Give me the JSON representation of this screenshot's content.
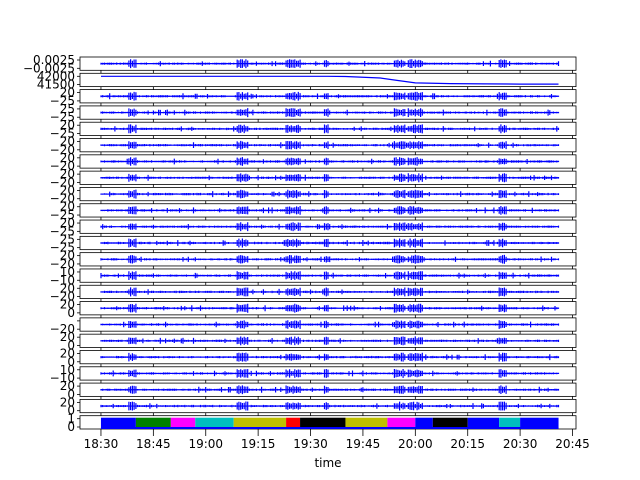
{
  "chart_data": {
    "type": "line",
    "title": "",
    "xlabel": "time",
    "x_tick_labels": [
      "18:30",
      "18:45",
      "19:00",
      "19:15",
      "19:30",
      "19:45",
      "20:00",
      "20:15",
      "20:30",
      "20:45"
    ],
    "x_range_minutes": [
      1104,
      1246
    ],
    "data_range_minutes": [
      1110,
      1241
    ],
    "panels": [
      {
        "yticks": [
          "0.0025",
          "−0.0025"
        ],
        "kind": "signal",
        "color": "#0000ff"
      },
      {
        "yticks": [
          "42000",
          "41500"
        ],
        "kind": "drift",
        "color": "#0000ff",
        "values": [
          42000,
          42000,
          42000,
          41990,
          41900,
          41750,
          41600,
          41560,
          41540,
          41530,
          41530
        ],
        "x_minutes": [
          1110,
          1165,
          1175,
          1180,
          1190,
          1195,
          1200,
          1210,
          1220,
          1230,
          1241
        ]
      },
      {
        "yticks": [
          "20",
          "−25"
        ],
        "kind": "signal",
        "color": "#0000ff"
      },
      {
        "yticks": [
          "25",
          "−25"
        ],
        "kind": "signal",
        "color": "#0000ff"
      },
      {
        "yticks": [
          "20",
          "−25"
        ],
        "kind": "signal",
        "color": "#0000ff"
      },
      {
        "yticks": [
          "20",
          "−20"
        ],
        "kind": "signal",
        "color": "#0000ff"
      },
      {
        "yticks": [
          "20",
          "−20"
        ],
        "kind": "signal",
        "color": "#0000ff"
      },
      {
        "yticks": [
          "20",
          "−20"
        ],
        "kind": "signal",
        "color": "#0000ff"
      },
      {
        "yticks": [
          "20",
          "−20"
        ],
        "kind": "signal",
        "color": "#0000ff"
      },
      {
        "yticks": [
          "20",
          "−25"
        ],
        "kind": "signal",
        "color": "#0000ff"
      },
      {
        "yticks": [
          "20",
          "−25"
        ],
        "kind": "signal",
        "color": "#0000ff"
      },
      {
        "yticks": [
          "25",
          "−25"
        ],
        "kind": "signal",
        "color": "#0000ff"
      },
      {
        "yticks": [
          "20",
          "−20"
        ],
        "kind": "signal",
        "color": "#0000ff"
      },
      {
        "yticks": [
          "10",
          "−10"
        ],
        "kind": "signal",
        "color": "#0000ff"
      },
      {
        "yticks": [
          "20",
          "−20"
        ],
        "kind": "signal",
        "color": "#0000ff"
      },
      {
        "yticks": [
          "20",
          "0"
        ],
        "kind": "signal",
        "color": "#0000ff"
      },
      {
        "yticks": [
          "",
          "−20"
        ],
        "kind": "signal",
        "color": "#0000ff"
      },
      {
        "yticks": [
          "20",
          "0"
        ],
        "kind": "signal",
        "color": "#0000ff"
      },
      {
        "yticks": [
          "20",
          "0"
        ],
        "kind": "signal",
        "color": "#0000ff"
      },
      {
        "yticks": [
          "10",
          "−10"
        ],
        "kind": "signal",
        "color": "#0000ff"
      },
      {
        "yticks": [
          "20",
          "0"
        ],
        "kind": "signal",
        "color": "#0000ff"
      },
      {
        "yticks": [
          "20",
          "0"
        ],
        "kind": "signal",
        "color": "#0000ff"
      },
      {
        "yticks": [
          "1",
          "0"
        ],
        "kind": "states",
        "color": "#0000ff"
      }
    ],
    "bursts_minutes": [
      {
        "start": 1118,
        "end": 1120
      },
      {
        "start": 1149,
        "end": 1152
      },
      {
        "start": 1163,
        "end": 1167
      },
      {
        "start": 1174,
        "end": 1175
      },
      {
        "start": 1194,
        "end": 1197
      },
      {
        "start": 1198,
        "end": 1202
      },
      {
        "start": 1224,
        "end": 1226
      }
    ],
    "state_segments": [
      {
        "start": 1110,
        "end": 1120,
        "color": "#0000ff"
      },
      {
        "start": 1120,
        "end": 1130,
        "color": "#008000"
      },
      {
        "start": 1130,
        "end": 1137,
        "color": "#ff00ff"
      },
      {
        "start": 1137,
        "end": 1148,
        "color": "#00bfbf"
      },
      {
        "start": 1148,
        "end": 1163,
        "color": "#bfbf00"
      },
      {
        "start": 1163,
        "end": 1167,
        "color": "#ff0000"
      },
      {
        "start": 1167,
        "end": 1180,
        "color": "#000000"
      },
      {
        "start": 1180,
        "end": 1192,
        "color": "#bfbf00"
      },
      {
        "start": 1192,
        "end": 1200,
        "color": "#ff00ff"
      },
      {
        "start": 1200,
        "end": 1205,
        "color": "#0000ff"
      },
      {
        "start": 1205,
        "end": 1215,
        "color": "#000000"
      },
      {
        "start": 1215,
        "end": 1224,
        "color": "#0000ff"
      },
      {
        "start": 1224,
        "end": 1230,
        "color": "#00bfbf"
      },
      {
        "start": 1230,
        "end": 1241,
        "color": "#0000ff"
      }
    ]
  }
}
